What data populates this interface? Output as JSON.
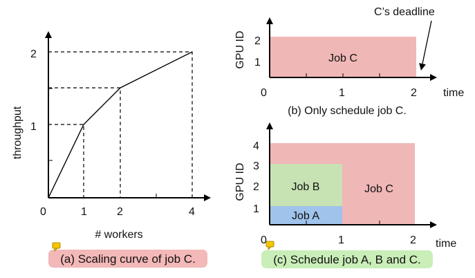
{
  "panel_a": {
    "ylabel": "throughput",
    "xlabel": "# workers",
    "x_ticks": [
      "0",
      "1",
      "2",
      "4"
    ],
    "y_ticks": [
      "1",
      "2"
    ],
    "curve_points": [
      [
        0,
        0
      ],
      [
        1,
        1
      ],
      [
        2,
        1.5
      ],
      [
        4,
        2
      ]
    ],
    "caption": "(a) Scaling curve of job C.",
    "caption_color": "#f3b8b8"
  },
  "panel_b": {
    "ylabel": "GPU ID",
    "xlabel": "time",
    "x_ticks": [
      "0",
      "1",
      "2"
    ],
    "y_ticks": [
      "1",
      "2"
    ],
    "job_c_label": "Job C",
    "deadline_label": "C’s deadline",
    "caption": "(b) Only schedule job C.",
    "job_c_color": "#f0b7b7"
  },
  "panel_c": {
    "ylabel": "GPU ID",
    "xlabel": "time",
    "x_ticks": [
      "0",
      "1",
      "2"
    ],
    "y_ticks": [
      "1",
      "2",
      "3",
      "4"
    ],
    "job_a_label": "Job A",
    "job_b_label": "Job B",
    "job_c_label": "Job C",
    "caption": "(c) Schedule job A, B and C.",
    "caption_color": "#c9eeb8",
    "job_a_color": "#9fc3ea",
    "job_b_color": "#c7e2b3",
    "job_c_color": "#f0b7b7"
  },
  "icons": [
    "comment-icon",
    "comment-icon"
  ]
}
